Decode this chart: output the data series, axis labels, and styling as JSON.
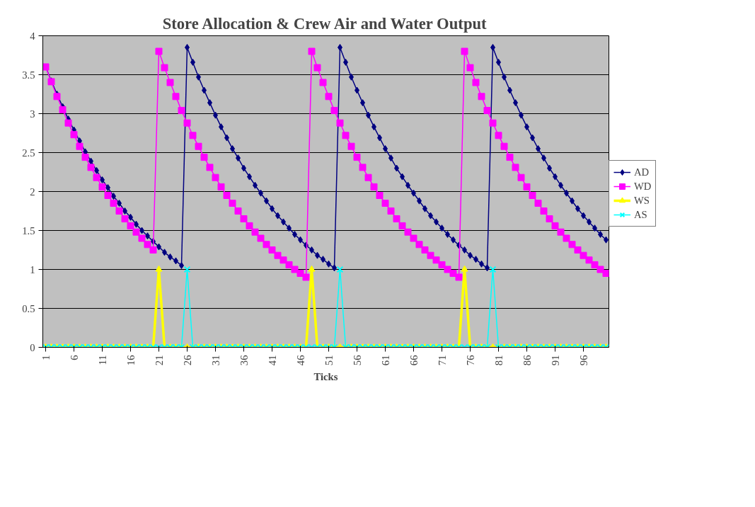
{
  "chart_data": {
    "type": "line",
    "title": "Store Allocation & Crew Air and Water Output",
    "xlabel": "Ticks",
    "x": [
      1,
      2,
      3,
      4,
      5,
      6,
      7,
      8,
      9,
      10,
      11,
      12,
      13,
      14,
      15,
      16,
      17,
      18,
      19,
      20,
      21,
      22,
      23,
      24,
      25,
      26,
      27,
      28,
      29,
      30,
      31,
      32,
      33,
      34,
      35,
      36,
      37,
      38,
      39,
      40,
      41,
      42,
      43,
      44,
      45,
      46,
      47,
      48,
      49,
      50,
      51,
      52,
      53,
      54,
      55,
      56,
      57,
      58,
      59,
      60,
      61,
      62,
      63,
      64,
      65,
      66,
      67,
      68,
      69,
      70,
      71,
      72,
      73,
      74,
      75,
      76,
      77,
      78,
      79,
      80,
      81,
      82,
      83,
      84,
      85,
      86,
      87,
      88,
      89,
      90,
      91,
      92,
      93,
      94,
      95,
      96,
      97,
      98,
      99,
      100
    ],
    "xlim": [
      0.5,
      100.5
    ],
    "xticks": [
      1,
      6,
      11,
      16,
      21,
      26,
      31,
      36,
      41,
      46,
      51,
      56,
      61,
      66,
      71,
      76,
      81,
      86,
      91,
      96
    ],
    "ylim": [
      0,
      4
    ],
    "yticks": [
      0,
      0.5,
      1,
      1.5,
      2,
      2.5,
      3,
      3.5,
      4
    ],
    "grid": "y",
    "legend": "right",
    "series": [
      {
        "name": "AD",
        "color": "#000080",
        "type": "line",
        "marker": "diamond",
        "values": [
          3.6,
          3.42,
          3.25,
          3.09,
          2.93,
          2.79,
          2.65,
          2.51,
          2.39,
          2.27,
          2.15,
          2.05,
          1.94,
          1.85,
          1.75,
          1.67,
          1.58,
          1.5,
          1.43,
          1.36,
          1.29,
          1.22,
          1.16,
          1.11,
          1.05,
          3.85,
          3.66,
          3.47,
          3.3,
          3.14,
          2.98,
          2.83,
          2.69,
          2.55,
          2.43,
          2.3,
          2.19,
          2.08,
          1.98,
          1.88,
          1.78,
          1.69,
          1.61,
          1.53,
          1.45,
          1.38,
          1.31,
          1.25,
          1.18,
          1.13,
          1.07,
          1.02,
          3.85,
          3.66,
          3.47,
          3.3,
          3.14,
          2.98,
          2.83,
          2.69,
          2.55,
          2.43,
          2.3,
          2.19,
          2.08,
          1.98,
          1.88,
          1.78,
          1.69,
          1.61,
          1.53,
          1.45,
          1.38,
          1.31,
          1.25,
          1.18,
          1.13,
          1.07,
          1.02,
          3.85,
          3.66,
          3.47,
          3.3,
          3.14,
          2.98,
          2.83,
          2.69,
          2.55,
          2.43,
          2.3,
          2.19,
          2.08,
          1.98,
          1.88,
          1.78,
          1.69,
          1.61,
          1.53,
          1.45,
          1.38
        ]
      },
      {
        "name": "WD",
        "color": "#ff00ff",
        "marker": "square",
        "values": [
          3.6,
          3.41,
          3.22,
          3.05,
          2.88,
          2.73,
          2.58,
          2.44,
          2.31,
          2.18,
          2.06,
          1.95,
          1.85,
          1.75,
          1.65,
          1.56,
          1.48,
          1.4,
          1.32,
          1.25,
          3.8,
          3.59,
          3.4,
          3.22,
          3.04,
          2.88,
          2.72,
          2.58,
          2.44,
          2.31,
          2.18,
          2.06,
          1.95,
          1.85,
          1.75,
          1.65,
          1.56,
          1.48,
          1.4,
          1.32,
          1.25,
          1.18,
          1.12,
          1.06,
          1.0,
          0.95,
          0.9,
          3.8,
          3.59,
          3.4,
          3.22,
          3.04,
          2.88,
          2.72,
          2.58,
          2.44,
          2.31,
          2.18,
          2.06,
          1.95,
          1.85,
          1.75,
          1.65,
          1.56,
          1.48,
          1.4,
          1.32,
          1.25,
          1.18,
          1.12,
          1.06,
          1.0,
          0.95,
          0.9,
          3.8,
          3.59,
          3.4,
          3.22,
          3.04,
          2.88,
          2.72,
          2.58,
          2.44,
          2.31,
          2.18,
          2.06,
          1.95,
          1.85,
          1.75,
          1.65,
          1.56,
          1.48,
          1.4,
          1.32,
          1.25,
          1.18,
          1.12,
          1.06,
          1.0,
          0.95
        ]
      },
      {
        "name": "WS",
        "color": "#ffff00",
        "marker": "triangle",
        "values": [
          0,
          0,
          0,
          0,
          0,
          0,
          0,
          0,
          0,
          0,
          0,
          0,
          0,
          0,
          0,
          0,
          0,
          0,
          0,
          0,
          1,
          0,
          0,
          0,
          0,
          0,
          0,
          0,
          0,
          0,
          0,
          0,
          0,
          0,
          0,
          0,
          0,
          0,
          0,
          0,
          0,
          0,
          0,
          0,
          0,
          0,
          0,
          1,
          0,
          0,
          0,
          0,
          0,
          0,
          0,
          0,
          0,
          0,
          0,
          0,
          0,
          0,
          0,
          0,
          0,
          0,
          0,
          0,
          0,
          0,
          0,
          0,
          0,
          0,
          1,
          0,
          0,
          0,
          0,
          0,
          0,
          0,
          0,
          0,
          0,
          0,
          0,
          0,
          0,
          0,
          0,
          0,
          0,
          0,
          0,
          0,
          0,
          0,
          0,
          0
        ]
      },
      {
        "name": "AS",
        "color": "#00ffff",
        "marker": "cross",
        "values": [
          0,
          0,
          0,
          0,
          0,
          0,
          0,
          0,
          0,
          0,
          0,
          0,
          0,
          0,
          0,
          0,
          0,
          0,
          0,
          0,
          0,
          0,
          0,
          0,
          0,
          1,
          0,
          0,
          0,
          0,
          0,
          0,
          0,
          0,
          0,
          0,
          0,
          0,
          0,
          0,
          0,
          0,
          0,
          0,
          0,
          0,
          0,
          0,
          0,
          0,
          0,
          0,
          1,
          0,
          0,
          0,
          0,
          0,
          0,
          0,
          0,
          0,
          0,
          0,
          0,
          0,
          0,
          0,
          0,
          0,
          0,
          0,
          0,
          0,
          0,
          0,
          0,
          0,
          0,
          1,
          0,
          0,
          0,
          0,
          0,
          0,
          0,
          0,
          0,
          0,
          0,
          0,
          0,
          0,
          0,
          0,
          0,
          0,
          0,
          0
        ]
      }
    ]
  }
}
